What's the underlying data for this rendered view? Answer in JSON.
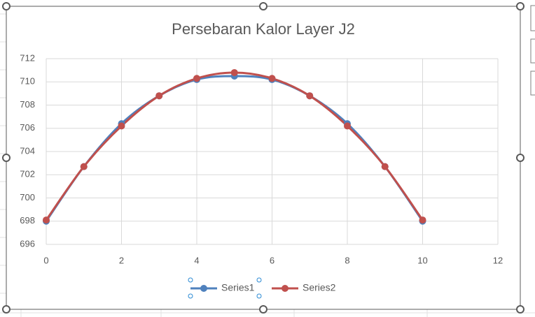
{
  "chart_data": {
    "type": "line",
    "title": "Persebaran Kalor Layer J2",
    "x": [
      0,
      1,
      2,
      3,
      4,
      5,
      6,
      7,
      8,
      9,
      10
    ],
    "series": [
      {
        "name": "Series1",
        "color": "#4f81bd",
        "values": [
          698.0,
          702.7,
          706.4,
          708.8,
          710.2,
          710.5,
          710.2,
          708.8,
          706.4,
          702.7,
          698.0
        ]
      },
      {
        "name": "Series2",
        "color": "#c0504d",
        "values": [
          698.1,
          702.7,
          706.2,
          708.8,
          710.3,
          710.8,
          710.3,
          708.8,
          706.2,
          702.7,
          698.1
        ]
      }
    ],
    "xlim": [
      0,
      12
    ],
    "xticks": [
      0,
      2,
      4,
      6,
      8,
      10,
      12
    ],
    "ylim": [
      696,
      712
    ],
    "yticks": [
      696,
      698,
      700,
      702,
      704,
      706,
      708,
      710,
      712
    ],
    "grid": true,
    "smooth": true,
    "legend": "bottom"
  }
}
